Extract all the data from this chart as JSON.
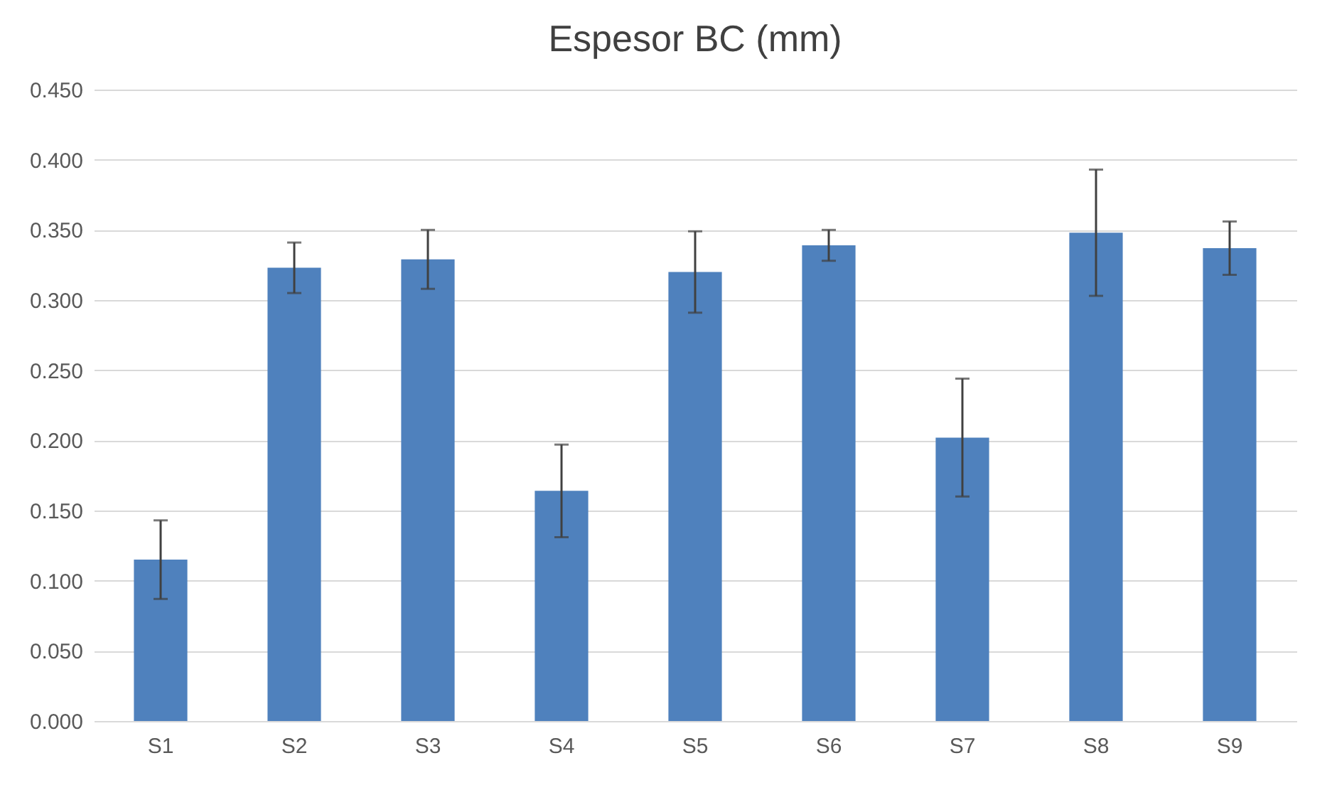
{
  "chart_data": {
    "type": "bar",
    "title": "Espesor BC (mm)",
    "categories": [
      "S1",
      "S2",
      "S3",
      "S4",
      "S5",
      "S6",
      "S7",
      "S8",
      "S9"
    ],
    "values": [
      0.115,
      0.323,
      0.329,
      0.164,
      0.32,
      0.339,
      0.202,
      0.348,
      0.337
    ],
    "errors": [
      0.028,
      0.018,
      0.021,
      0.033,
      0.029,
      0.011,
      0.042,
      0.045,
      0.019
    ],
    "color": "#4f81bd",
    "ylim": [
      0,
      0.45
    ],
    "yticks": [
      {
        "value": 0,
        "label": "0.000"
      },
      {
        "value": 0.05,
        "label": "0.050"
      },
      {
        "value": 0.1,
        "label": "0.100"
      },
      {
        "value": 0.15,
        "label": "0.150"
      },
      {
        "value": 0.2,
        "label": "0.200"
      },
      {
        "value": 0.25,
        "label": "0.250"
      },
      {
        "value": 0.3,
        "label": "0.300"
      },
      {
        "value": 0.35,
        "label": "0.350"
      },
      {
        "value": 0.4,
        "label": "0.400"
      },
      {
        "value": 0.45,
        "label": "0.450"
      }
    ],
    "grid": "y"
  }
}
